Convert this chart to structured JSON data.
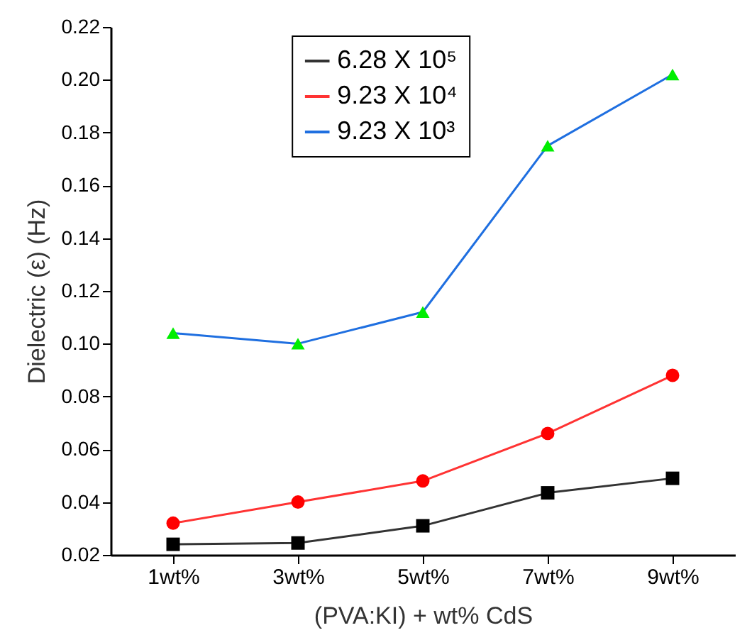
{
  "chart_data": {
    "type": "line",
    "xlabel": "(PVA:KI) + wt% CdS",
    "ylabel": "Dielectric (ε) (Hz)",
    "categories": [
      "1wt%",
      "3wt%",
      "5wt%",
      "7wt%",
      "9wt%"
    ],
    "series": [
      {
        "name": "6.28 X 10⁵",
        "color": "#333333",
        "colors": [
          "#000000",
          "#000000",
          "#000000",
          "#000000",
          "#000000"
        ],
        "marker": "square",
        "values": [
          0.024,
          0.0245,
          0.031,
          0.0435,
          0.049
        ]
      },
      {
        "name": "9.23 X 10⁴",
        "color": "#ff3333",
        "colors": [
          "#ff0000",
          "#ff0000",
          "#ff0000",
          "#ff0000",
          "#ff0000"
        ],
        "marker": "circle",
        "values": [
          0.032,
          0.04,
          0.048,
          0.066,
          0.088
        ]
      },
      {
        "name": "9.23 X 10³",
        "color": "#1f6fe0",
        "colors": [
          "#00ee00",
          "#00ee00",
          "#00ee00",
          "#00ee00",
          "#00ee00"
        ],
        "marker": "triangle",
        "values": [
          0.104,
          0.1,
          0.112,
          0.175,
          0.202
        ]
      }
    ],
    "ylim": [
      0.02,
      0.22
    ],
    "yticks": [
      {
        "value": 0.02,
        "label": "0.02"
      },
      {
        "value": 0.04,
        "label": "0.04"
      },
      {
        "value": 0.06,
        "label": "0.06"
      },
      {
        "value": 0.08,
        "label": "0.08"
      },
      {
        "value": 0.1,
        "label": "0.10"
      },
      {
        "value": 0.12,
        "label": "0.12"
      },
      {
        "value": 0.14,
        "label": "0.14"
      },
      {
        "value": 0.16,
        "label": "0.16"
      },
      {
        "value": 0.18,
        "label": "0.18"
      },
      {
        "value": 0.2,
        "label": "0.20"
      },
      {
        "value": 0.22,
        "label": "0.22"
      }
    ],
    "grid": false,
    "legend": "top",
    "line_style": "solid"
  }
}
